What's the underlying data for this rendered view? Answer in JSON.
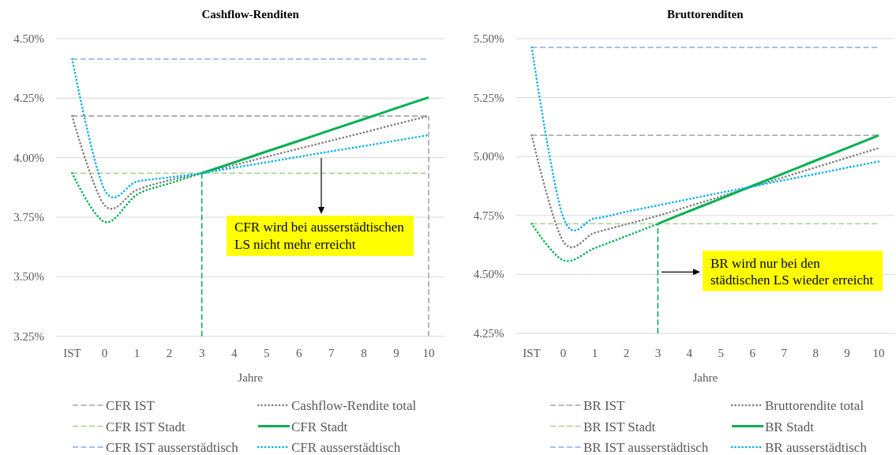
{
  "chart_data": [
    {
      "type": "line",
      "title": "Cashflow-Renditen",
      "xlabel": "Jahre",
      "categories": [
        "IST",
        "0",
        "1",
        "2",
        "3",
        "4",
        "5",
        "6",
        "7",
        "8",
        "9",
        "10"
      ],
      "ylim": [
        3.25,
        4.5
      ],
      "yticks": [
        {
          "value": 3.25,
          "label": "3.25%"
        },
        {
          "value": 3.5,
          "label": "3.50%"
        },
        {
          "value": 3.75,
          "label": "3.75%"
        },
        {
          "value": 4,
          "label": "4.00%"
        },
        {
          "value": 4.25,
          "label": "4.25%"
        },
        {
          "value": 4.5,
          "label": "4.50%"
        }
      ],
      "grid": "y",
      "legend": "bottom",
      "series": [
        {
          "name": "CFR IST",
          "color": "#a5a5a5",
          "line_style": "dashed",
          "values": [
            4.175,
            4.175,
            4.175,
            4.175,
            4.175,
            4.175,
            4.175,
            4.175,
            4.175,
            4.175,
            4.175,
            4.175
          ]
        },
        {
          "name": "Cashflow-Rendite total",
          "color": "#7f7f7f",
          "line_style": "dotted",
          "values": [
            4.175,
            3.8,
            3.865,
            3.905,
            3.935,
            3.969,
            4.004,
            4.038,
            4.072,
            4.106,
            4.141,
            4.175
          ]
        },
        {
          "name": "CFR IST Stadt",
          "color": "#a9d18e",
          "line_style": "dashed",
          "values": [
            3.935,
            3.935,
            3.935,
            3.935,
            3.935,
            3.935,
            3.935,
            3.935,
            3.935,
            3.935,
            3.935,
            3.935
          ]
        },
        {
          "name": "CFR Stadt",
          "color": "#00b050",
          "line_style": "solid",
          "values": [
            null,
            null,
            null,
            null,
            3.935,
            3.98,
            4.026,
            4.071,
            4.117,
            4.162,
            4.208,
            4.253
          ]
        },
        {
          "name": "CFR IST ausserstädtisch",
          "color": "#8faadc",
          "line_style": "dashed",
          "values": [
            4.414,
            4.414,
            4.414,
            4.414,
            4.414,
            4.414,
            4.414,
            4.414,
            4.414,
            4.414,
            4.414,
            4.414
          ]
        },
        {
          "name": "CFR ausserstädtisch",
          "color": "#00b0f0",
          "line_style": "dotted",
          "values": [
            4.414,
            3.865,
            3.9,
            3.917,
            3.935,
            3.958,
            3.981,
            4.004,
            4.027,
            4.049,
            4.072,
            4.095
          ]
        },
        {
          "color": "#00b050",
          "line_style": "dotted",
          "values": [
            3.935,
            3.73,
            3.845,
            3.892,
            3.935,
            null,
            null,
            null,
            null,
            null,
            null,
            null
          ]
        },
        {
          "color": "#00b050",
          "line_style": "dashed",
          "x": [
            "3",
            "3"
          ],
          "values": [
            3.25,
            3.935
          ]
        },
        {
          "color": "#a5a5a5",
          "line_style": "dashed",
          "x": [
            "10",
            "10"
          ],
          "values": [
            3.25,
            4.175
          ]
        }
      ],
      "annotations": [
        "CFR wird bei ausserstädtischen LS nicht mehr erreicht"
      ]
    },
    {
      "type": "line",
      "title": "Bruttorenditen",
      "xlabel": "Jahre",
      "categories": [
        "IST",
        "0",
        "1",
        "2",
        "3",
        "4",
        "5",
        "6",
        "7",
        "8",
        "9",
        "10"
      ],
      "ylim": [
        4.25,
        5.5
      ],
      "yticks": [
        {
          "value": 4.25,
          "label": "4.25%"
        },
        {
          "value": 4.5,
          "label": "4.50%"
        },
        {
          "value": 4.75,
          "label": "4.75%"
        },
        {
          "value": 5,
          "label": "5.00%"
        },
        {
          "value": 5.25,
          "label": "5.25%"
        },
        {
          "value": 5.5,
          "label": "5.50%"
        }
      ],
      "grid": "y",
      "legend": "bottom",
      "series": [
        {
          "name": "BR IST",
          "color": "#a5a5a5",
          "line_style": "dashed",
          "values": [
            5.09,
            5.09,
            5.09,
            5.09,
            5.09,
            5.09,
            5.09,
            5.09,
            5.09,
            5.09,
            5.09,
            5.09
          ]
        },
        {
          "name": "Bruttorendite total",
          "color": "#7f7f7f",
          "line_style": "dotted",
          "values": [
            5.09,
            4.64,
            4.677,
            4.713,
            4.749,
            4.79,
            4.831,
            4.872,
            4.913,
            4.954,
            4.995,
            5.036
          ]
        },
        {
          "name": "BR IST Stadt",
          "color": "#a9d18e",
          "line_style": "dashed",
          "values": [
            4.715,
            4.715,
            4.715,
            4.715,
            4.715,
            4.715,
            4.715,
            4.715,
            4.715,
            4.715,
            4.715,
            4.715
          ]
        },
        {
          "name": "BR Stadt",
          "color": "#00b050",
          "line_style": "solid",
          "values": [
            null,
            null,
            null,
            null,
            4.715,
            4.769,
            4.822,
            4.876,
            4.929,
            4.983,
            5.036,
            5.09
          ]
        },
        {
          "name": "BR IST ausserstädtisch",
          "color": "#8faadc",
          "line_style": "dashed",
          "values": [
            5.463,
            5.463,
            5.463,
            5.463,
            5.463,
            5.463,
            5.463,
            5.463,
            5.463,
            5.463,
            5.463,
            5.463
          ]
        },
        {
          "name": "BR ausserstädtisch",
          "color": "#00b0f0",
          "line_style": "dotted",
          "values": [
            5.463,
            4.742,
            4.738,
            4.766,
            4.793,
            4.82,
            4.847,
            4.873,
            4.9,
            4.926,
            4.953,
            4.979
          ]
        },
        {
          "color": "#00b050",
          "line_style": "dotted",
          "values": [
            4.715,
            4.56,
            4.612,
            4.663,
            4.715,
            null,
            null,
            null,
            null,
            null,
            null,
            null
          ]
        },
        {
          "color": "#00b050",
          "line_style": "dashed",
          "x": [
            "3",
            "3"
          ],
          "values": [
            4.25,
            4.715
          ]
        }
      ],
      "annotations": [
        "BR wird nur bei den städtischen LS wieder erreicht"
      ]
    }
  ]
}
